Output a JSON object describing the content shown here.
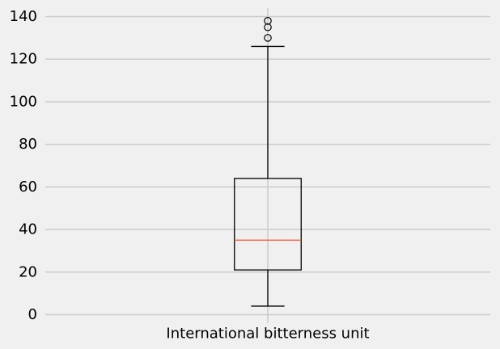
{
  "chart_data": {
    "type": "box",
    "title": "",
    "xlabel": "",
    "ylabel": "",
    "categories": [
      "International bitterness unit"
    ],
    "ylim": [
      -4,
      144
    ],
    "yticks": [
      0,
      20,
      40,
      60,
      80,
      100,
      120,
      140
    ],
    "grid": true,
    "colors": {
      "background": "#f0f0f0",
      "grid": "#cbcbcb",
      "box": "#000000",
      "median": "#fc4f30",
      "flier": "#000000"
    },
    "boxes": [
      {
        "label": "International bitterness unit",
        "whisker_low": 4,
        "q1": 21,
        "median": 35,
        "q3": 64,
        "whisker_high": 126,
        "fliers": [
          130,
          135,
          138
        ]
      }
    ]
  }
}
